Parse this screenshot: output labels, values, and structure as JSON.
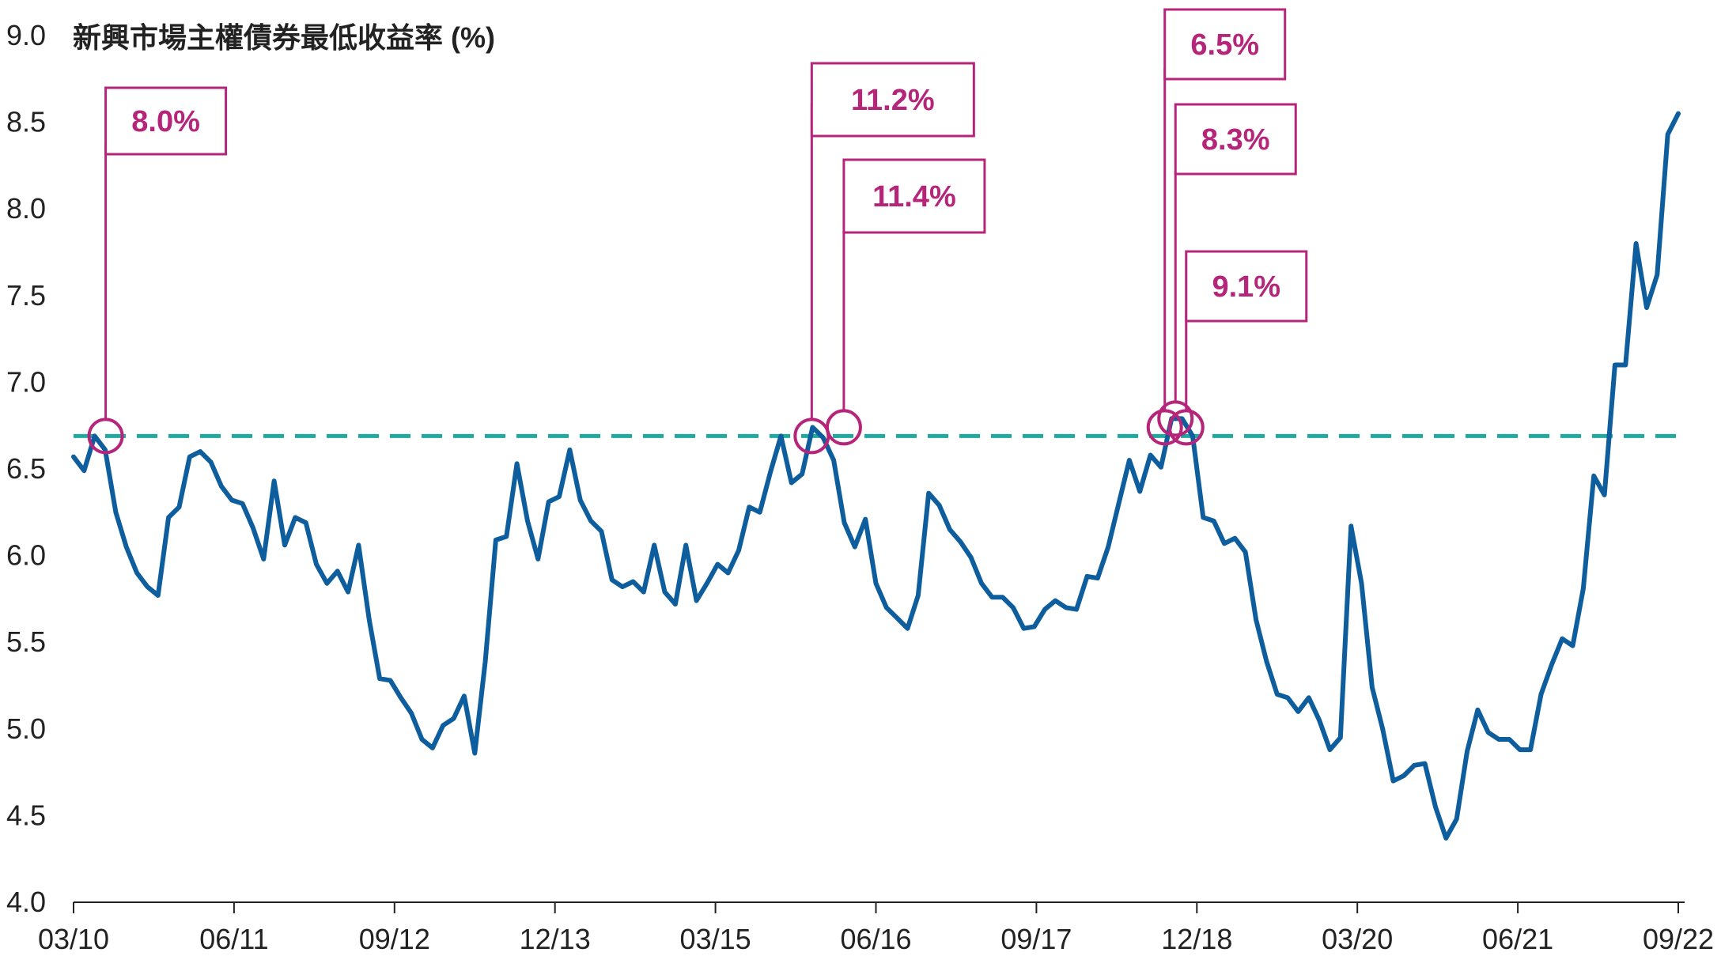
{
  "chart_data": {
    "type": "line",
    "title": "新興市場主權債券最低收益率 (%)",
    "xlabel": "",
    "ylabel": "",
    "ylim": [
      4.0,
      9.0
    ],
    "yticks": [
      "9.0",
      "8.5",
      "8.0",
      "7.5",
      "7.0",
      "6.5",
      "6.0",
      "5.5",
      "5.0",
      "4.5",
      "4.0"
    ],
    "xticks": [
      "03/10",
      "06/11",
      "09/12",
      "12/13",
      "03/15",
      "06/16",
      "09/17",
      "12/18",
      "03/20",
      "06/21",
      "09/22"
    ],
    "x_range": [
      "2010-03",
      "2022-09"
    ],
    "reference_line": {
      "value": 6.69,
      "style": "dashed",
      "color": "#1fa99f"
    },
    "line_color": "#0e5e9e",
    "callout_color": "#b5267b",
    "grid": false,
    "series": [
      {
        "values": [
          6.57,
          6.49,
          6.69,
          6.61,
          6.25,
          6.05,
          5.9,
          5.82,
          5.77,
          6.22,
          6.28,
          6.57,
          6.6,
          6.54,
          6.4,
          6.32,
          6.3,
          6.16,
          5.98,
          6.43,
          6.06,
          6.22,
          6.19,
          5.95,
          5.84,
          5.91,
          5.79,
          6.06,
          5.63,
          5.29,
          5.28,
          5.18,
          5.09,
          4.94,
          4.89,
          5.02,
          5.06,
          5.19,
          4.86,
          5.39,
          6.09,
          6.11,
          6.53,
          6.2,
          5.98,
          6.31,
          6.34,
          6.61,
          6.32,
          6.2,
          6.14,
          5.86,
          5.82,
          5.85,
          5.79,
          6.06,
          5.79,
          5.72,
          6.06,
          5.74,
          5.84,
          5.95,
          5.9,
          6.03,
          6.28,
          6.25,
          6.48,
          6.69,
          6.42,
          6.47,
          6.74,
          6.68,
          6.55,
          6.19,
          6.05,
          6.21,
          5.84,
          5.7,
          5.64,
          5.58,
          5.77,
          6.36,
          6.29,
          6.15,
          6.08,
          5.99,
          5.84,
          5.76,
          5.76,
          5.7,
          5.58,
          5.59,
          5.69,
          5.74,
          5.7,
          5.69,
          5.88,
          5.87,
          6.05,
          6.3,
          6.55,
          6.37,
          6.58,
          6.51,
          6.79,
          6.79,
          6.69,
          6.22,
          6.2,
          6.07,
          6.1,
          6.02,
          5.63,
          5.39,
          5.2,
          5.18,
          5.1,
          5.18,
          5.05,
          4.88,
          4.95,
          6.17,
          5.84,
          5.24,
          5.0,
          4.7,
          4.73,
          4.79,
          4.8,
          4.55,
          4.37,
          4.48,
          4.87,
          5.11,
          4.98,
          4.94,
          4.94,
          4.88,
          4.88,
          5.2,
          5.37,
          5.52,
          5.48,
          5.81,
          6.46,
          6.35,
          7.1,
          7.1,
          7.8,
          7.43,
          7.62,
          8.43,
          8.55
        ]
      }
    ]
  },
  "callouts": [
    {
      "label": "8.0%",
      "x_date": "2010-06",
      "y": 6.69
    },
    {
      "label": "11.2%",
      "x_date": "2015-12",
      "y": 6.69
    },
    {
      "label": "11.4%",
      "x_date": "2016-03",
      "y": 6.74
    },
    {
      "label": "6.5%",
      "x_date": "2018-09",
      "y": 6.74
    },
    {
      "label": "8.3%",
      "x_date": "2018-10",
      "y": 6.79
    },
    {
      "label": "9.1%",
      "x_date": "2018-11",
      "y": 6.74
    }
  ]
}
